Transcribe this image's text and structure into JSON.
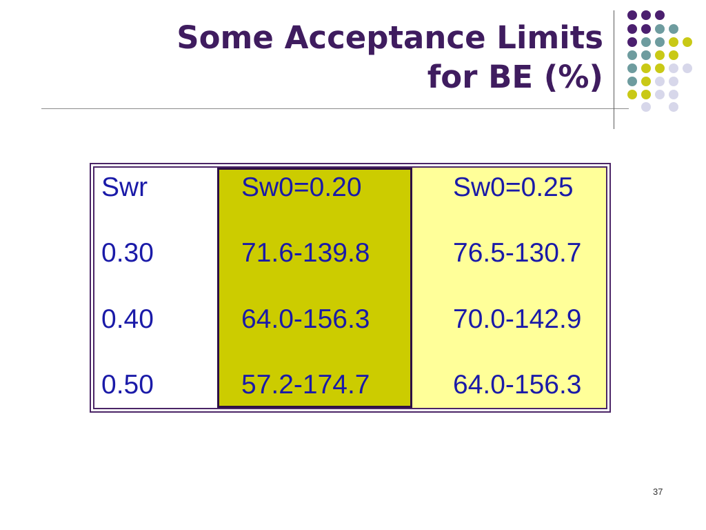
{
  "theme": {
    "title_color": "#3f1c5f",
    "text_color": "#1a1aa8",
    "table_border_color": "#4a2466",
    "highlight_column_fill": "#cccc00",
    "highlight_column_border": "#2d0f45",
    "light_column_fill": "#ffff99",
    "dot_colors": {
      "purple": "#4b1f6f",
      "teal": "#6e9c9f",
      "yellow": "#c9c916",
      "lavender": "#d7d7ea"
    }
  },
  "title": {
    "lines": [
      "Some Acceptance Limits",
      "for BE (%)"
    ]
  },
  "table": {
    "headers": [
      "Swr",
      "Sw0=0.20",
      "Sw0=0.25"
    ],
    "rows": [
      [
        "0.30",
        "71.6-139.8",
        "76.5-130.7"
      ],
      [
        "0.40",
        "64.0-156.3",
        "70.0-142.9"
      ],
      [
        "0.50",
        "57.2-174.7",
        "64.0-156.3"
      ]
    ]
  },
  "slide_number": "37"
}
